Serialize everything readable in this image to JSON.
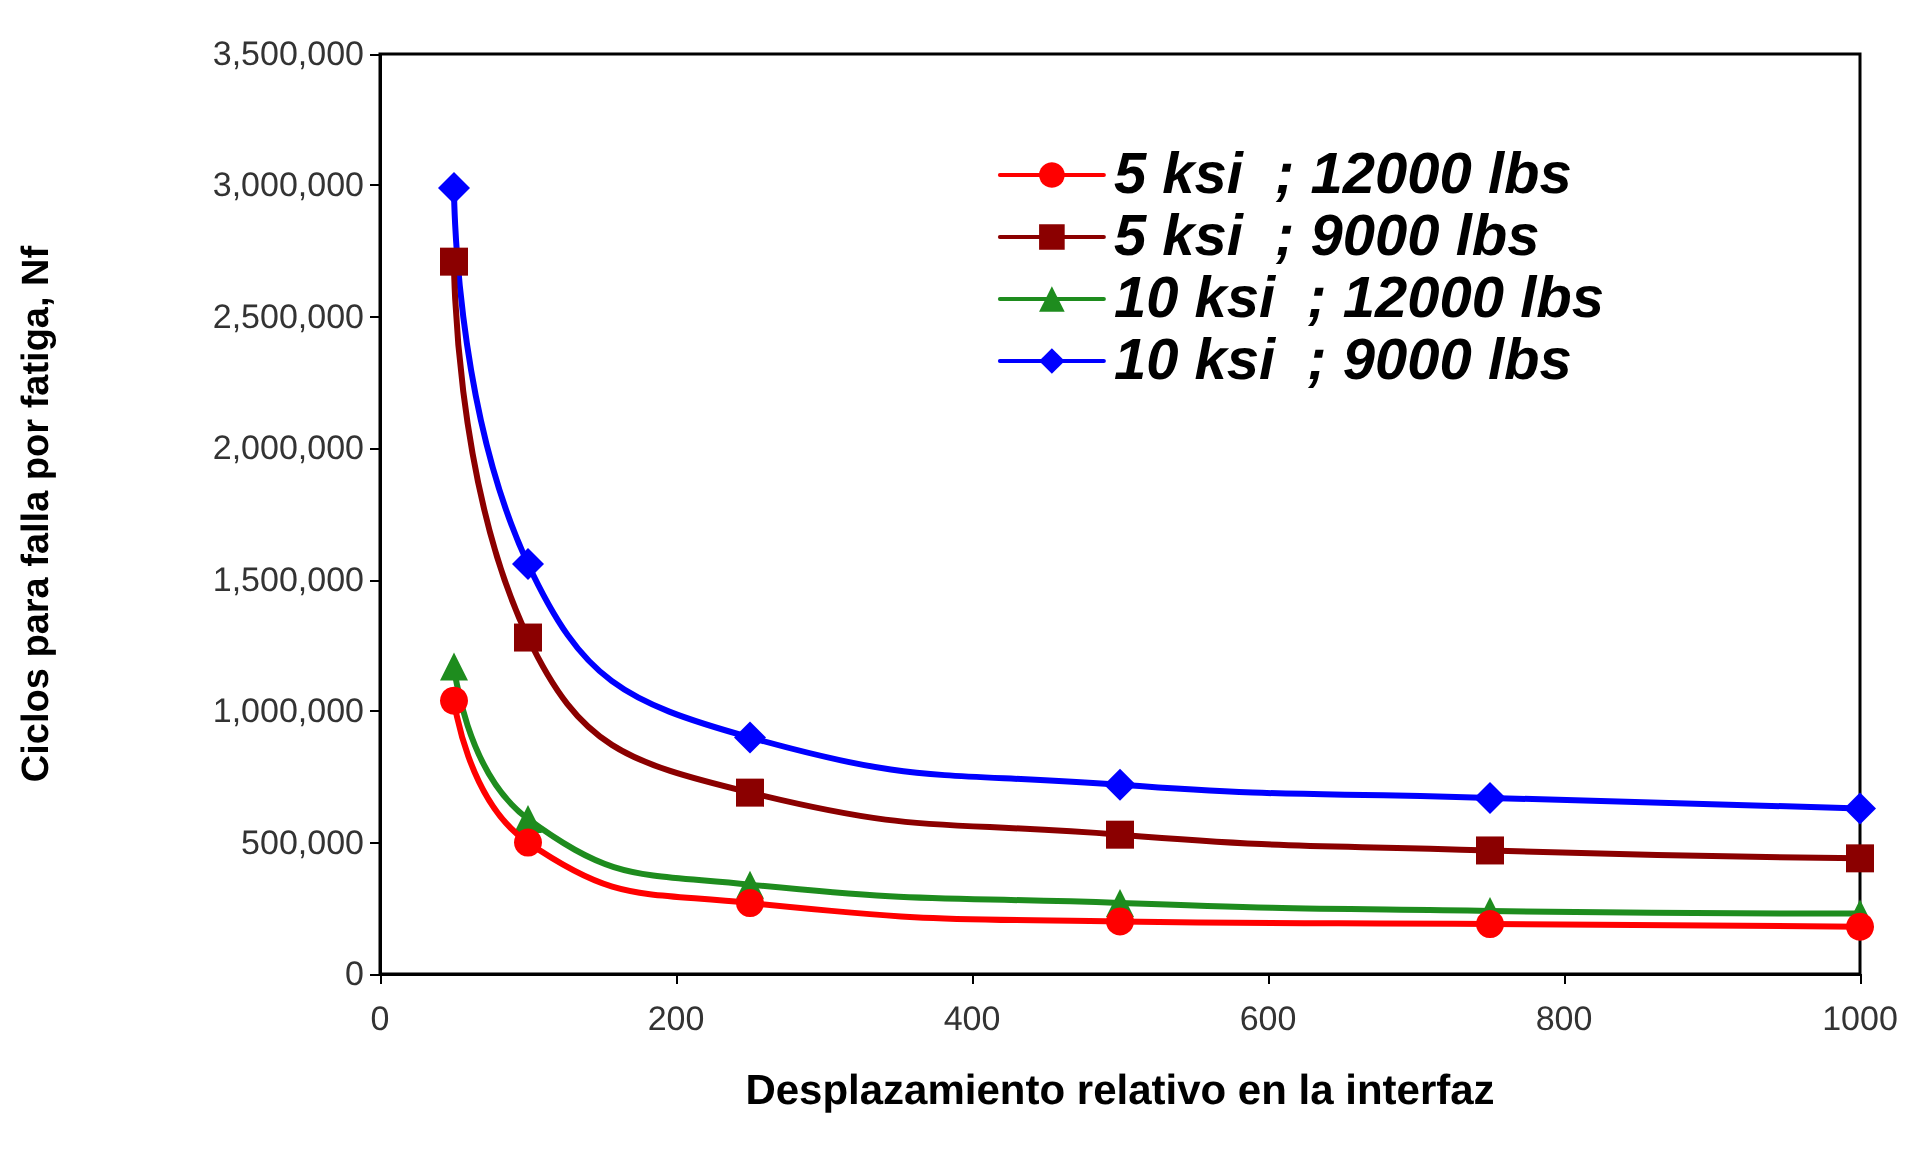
{
  "chart_data": {
    "type": "line",
    "xlabel": "Desplazamiento relativo en la interfaz",
    "ylabel": "Ciclos para falla por fatiga, Nf",
    "x": [
      50,
      100,
      250,
      500,
      750,
      1000
    ],
    "series": [
      {
        "name": "5 ksi  ; 12000 lbs",
        "color": "#ff0000",
        "marker": "circle",
        "values": [
          1040000,
          500000,
          270000,
          200000,
          190000,
          180000
        ]
      },
      {
        "name": "5 ksi  ; 9000 lbs",
        "color": "#8b0000",
        "marker": "square",
        "values": [
          2710000,
          1280000,
          690000,
          530000,
          470000,
          440000
        ]
      },
      {
        "name": "10 ksi  ; 12000 lbs",
        "color": "#1e8c1e",
        "marker": "triangle",
        "values": [
          1170000,
          590000,
          340000,
          270000,
          240000,
          230000
        ]
      },
      {
        "name": "10 ksi  ; 9000 lbs",
        "color": "#0000ff",
        "marker": "diamond",
        "values": [
          2990000,
          1560000,
          900000,
          720000,
          670000,
          630000
        ]
      }
    ],
    "xlim": [
      0,
      1000
    ],
    "xticks": [
      0,
      200,
      400,
      600,
      800,
      1000
    ],
    "ylim": [
      0,
      3500000
    ],
    "yticks": [
      {
        "value": 0,
        "label": "0"
      },
      {
        "value": 500000,
        "label": "500,000"
      },
      {
        "value": 1000000,
        "label": "1,000,000"
      },
      {
        "value": 1500000,
        "label": "1,500,000"
      },
      {
        "value": 2000000,
        "label": "2,000,000"
      },
      {
        "value": 2500000,
        "label": "2,500,000"
      },
      {
        "value": 3000000,
        "label": "3,000,000"
      },
      {
        "value": 3500000,
        "label": "3,500,000"
      }
    ],
    "grid": false,
    "legend": "top right",
    "line_style": "solid"
  }
}
